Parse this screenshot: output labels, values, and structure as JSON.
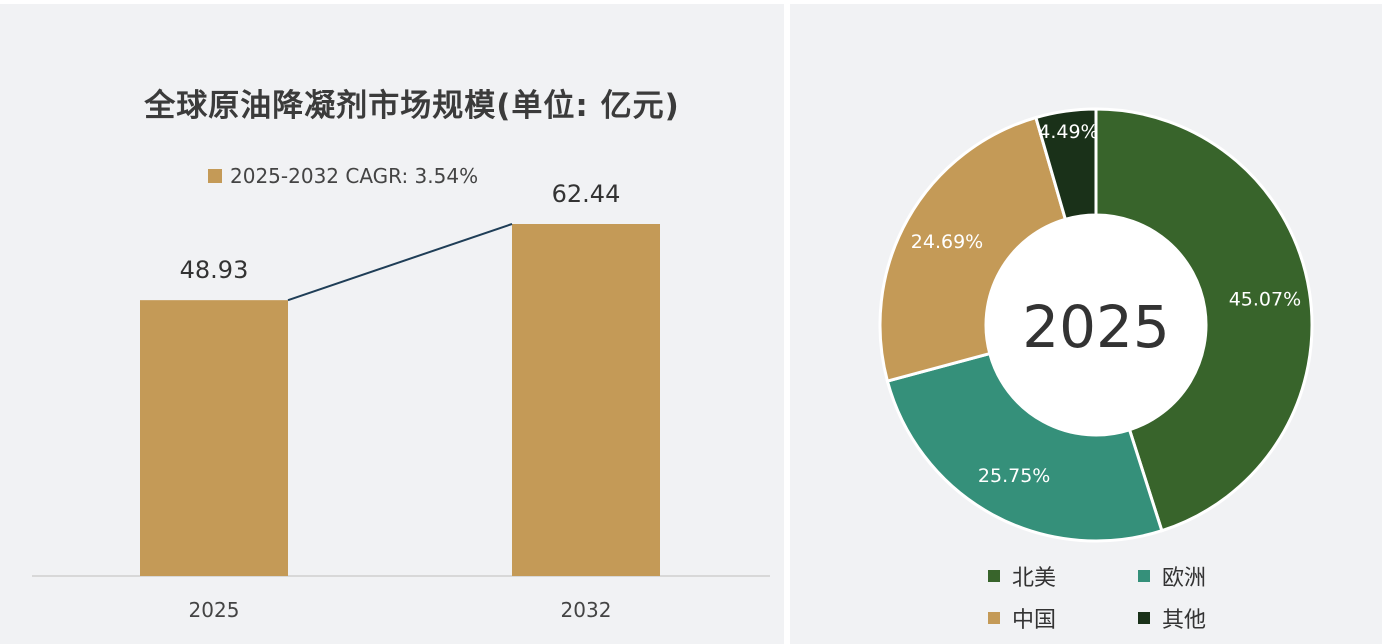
{
  "chart_data": [
    {
      "type": "bar",
      "title": "全球原油降凝剂市场规模(单位: 亿元)",
      "legend": [
        "2025-2032 CAGR: 3.54%"
      ],
      "categories": [
        "2025",
        "2032"
      ],
      "values": [
        48.93,
        62.44
      ],
      "value_labels": [
        "48.93",
        "62.44"
      ],
      "color": "#c49a57",
      "trend_line_color": "#1f3e57",
      "ylim": [
        0,
        70
      ],
      "grid": false,
      "legend_position": "top"
    },
    {
      "type": "pie",
      "variant": "donut",
      "center_label": "2025",
      "labels": [
        "北美",
        "欧洲",
        "中国",
        "其他"
      ],
      "values": [
        45.07,
        25.75,
        24.69,
        4.49
      ],
      "value_labels": [
        "45.07%",
        "25.75%",
        "24.69%",
        "4.49%"
      ],
      "colors": [
        "#38642b",
        "#35907a",
        "#c49a57",
        "#1a3119"
      ],
      "legend_position": "bottom"
    }
  ]
}
